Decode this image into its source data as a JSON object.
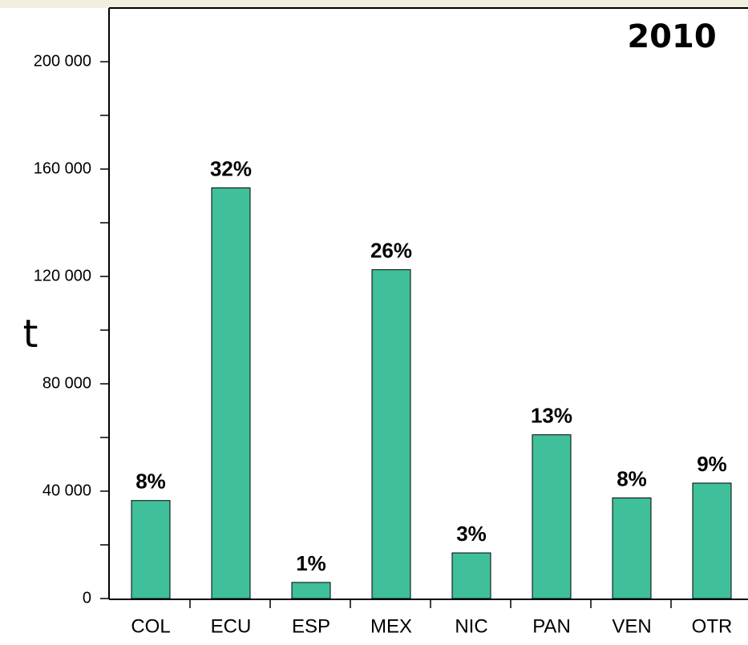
{
  "chart_data": {
    "type": "bar",
    "title": "2010",
    "y_label": "t",
    "categories": [
      "COL",
      "ECU",
      "ESP",
      "MEX",
      "NIC",
      "PAN",
      "VEN",
      "OTR"
    ],
    "values": [
      36500,
      153000,
      6000,
      122500,
      17000,
      61000,
      37500,
      43000
    ],
    "shares": [
      "8%",
      "32%",
      "1%",
      "26%",
      "3%",
      "13%",
      "8%",
      "9%"
    ],
    "color": "#40bf9b",
    "ylim": [
      0,
      220000
    ],
    "yticks": [
      {
        "value": 0,
        "label": "0"
      },
      {
        "value": 40000,
        "label": "40 000"
      },
      {
        "value": 80000,
        "label": "80 000"
      },
      {
        "value": 120000,
        "label": "120 000"
      },
      {
        "value": 160000,
        "label": "160 000"
      },
      {
        "value": 200000,
        "label": "200 000"
      }
    ],
    "yminor": [
      20000,
      60000,
      100000,
      140000,
      180000
    ]
  }
}
